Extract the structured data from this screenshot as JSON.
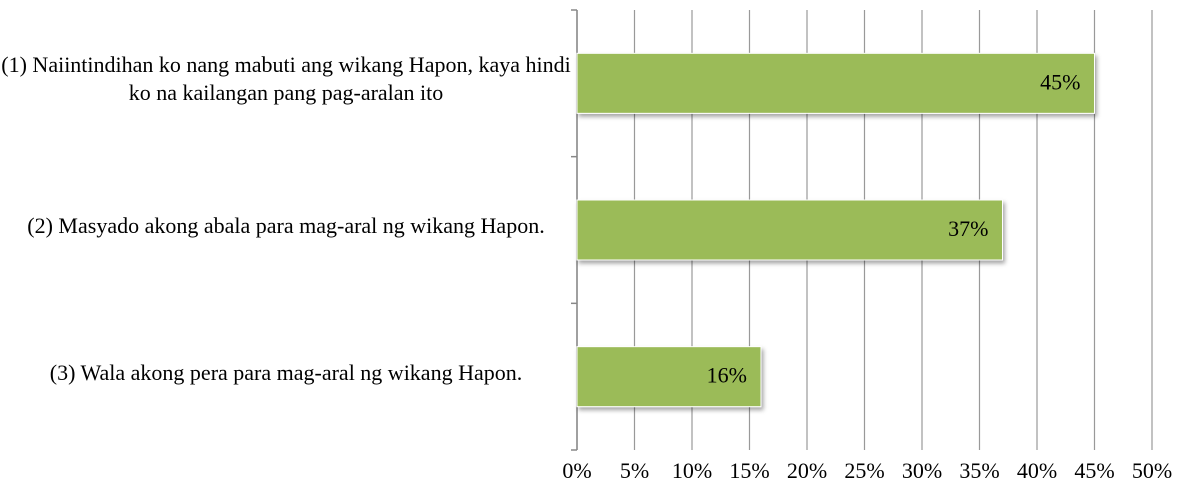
{
  "chart_data": {
    "type": "bar",
    "orientation": "horizontal",
    "categories": [
      "(1) Naiintindihan ko nang mabuti ang wikang Hapon, kaya hindi ko na kailangan pang pag-aralan ito",
      "(2) Masyado akong abala para mag-aral ng wikang Hapon.",
      "(3) Wala akong pera para mag-aral ng wikang Hapon."
    ],
    "values": [
      45,
      37,
      16
    ],
    "value_labels": [
      "45%",
      "37%",
      "16%"
    ],
    "color": "#9bbb59",
    "xlim": [
      0,
      50
    ],
    "xticks": [
      {
        "value": 0,
        "label": "0%"
      },
      {
        "value": 5,
        "label": "5%"
      },
      {
        "value": 10,
        "label": "10%"
      },
      {
        "value": 15,
        "label": "15%"
      },
      {
        "value": 20,
        "label": "20%"
      },
      {
        "value": 25,
        "label": "25%"
      },
      {
        "value": 30,
        "label": "30%"
      },
      {
        "value": 35,
        "label": "35%"
      },
      {
        "value": 40,
        "label": "40%"
      },
      {
        "value": 45,
        "label": "45%"
      },
      {
        "value": 50,
        "label": "50%"
      }
    ],
    "grid": true
  }
}
